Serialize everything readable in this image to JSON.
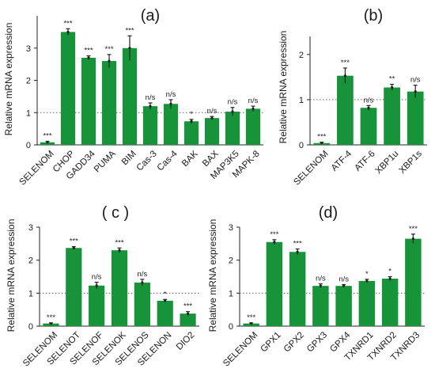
{
  "chart_data": [
    {
      "type": "bar",
      "panel": "(a)",
      "ylabel": "Relative mRNA expression",
      "ylim": [
        0,
        4
      ],
      "yticks": [
        0,
        1,
        2,
        3
      ],
      "reference_line": 1,
      "categories": [
        "SELENOM",
        "CHOP",
        "GADD34",
        "PUMA",
        "BIM",
        "Cas-3",
        "Cas-4",
        "BAK",
        "BAX",
        "MAP3K5",
        "MAPK-8"
      ],
      "values": [
        0.08,
        3.5,
        2.7,
        2.6,
        3.0,
        1.2,
        1.27,
        0.73,
        0.83,
        1.03,
        1.12
      ],
      "errors": [
        0.03,
        0.1,
        0.06,
        0.2,
        0.38,
        0.1,
        0.13,
        0.06,
        0.05,
        0.13,
        0.08
      ],
      "significance": [
        "***",
        "***",
        "***",
        "***",
        "***",
        "n/s",
        "n/s",
        "*",
        "n/s",
        "n/s",
        "n/s"
      ],
      "bar_color": "#17943a"
    },
    {
      "type": "bar",
      "panel": "(b)",
      "ylabel": "Relative mRNA expression",
      "ylim": [
        0,
        2.4
      ],
      "yticks": [
        0,
        1,
        2
      ],
      "reference_line": 1,
      "categories": [
        "SELENOM",
        "ATF-4",
        "ATF-6",
        "XBP1u",
        "XBP1s"
      ],
      "values": [
        0.04,
        1.53,
        0.82,
        1.27,
        1.18
      ],
      "errors": [
        0.02,
        0.17,
        0.05,
        0.07,
        0.14
      ],
      "significance": [
        "***",
        "***",
        "n/s",
        "**",
        "n/s"
      ],
      "bar_color": "#17943a"
    },
    {
      "type": "bar",
      "panel": "( c )",
      "ylabel": "Relative mRNA expression",
      "ylim": [
        0,
        3
      ],
      "yticks": [
        0,
        1,
        2,
        3
      ],
      "reference_line": 1,
      "categories": [
        "SELENOM",
        "SELENOT",
        "SELENOF",
        "SELENOK",
        "SELENOS",
        "SELENON",
        "DIO2"
      ],
      "values": [
        0.08,
        2.37,
        1.23,
        2.3,
        1.32,
        0.77,
        0.38
      ],
      "errors": [
        0.02,
        0.04,
        0.1,
        0.07,
        0.1,
        0.04,
        0.06
      ],
      "significance": [
        "***",
        "***",
        "n/s",
        "***",
        "n/s",
        "*",
        "***"
      ],
      "bar_color": "#17943a"
    },
    {
      "type": "bar",
      "panel": "(d)",
      "ylabel": "Relative mRNA expression",
      "ylim": [
        0,
        3
      ],
      "yticks": [
        0,
        1,
        2,
        3
      ],
      "reference_line": 1,
      "categories": [
        "SELENOM",
        "GPX1",
        "GPX2",
        "GPX3",
        "GPX4",
        "TXNRD1",
        "TXNRD2",
        "TXNRD3"
      ],
      "values": [
        0.08,
        2.55,
        2.25,
        1.22,
        1.22,
        1.37,
        1.44,
        2.65
      ],
      "errors": [
        0.02,
        0.07,
        0.09,
        0.06,
        0.04,
        0.05,
        0.06,
        0.14
      ],
      "significance": [
        "***",
        "***",
        "***",
        "n/s",
        "n/s",
        "*",
        "*",
        "***"
      ],
      "bar_color": "#17943a"
    }
  ]
}
